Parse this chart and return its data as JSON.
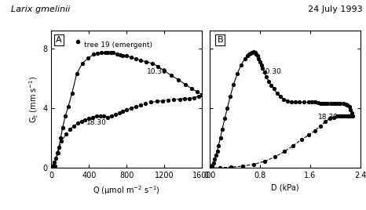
{
  "title_left": "Larix gmelinii",
  "title_right": "24 July 1993",
  "legend_label": "tree 19 (emergent)",
  "ylabel": "G$_t$ (mm s$^{-1}$)",
  "xlabel_a": "Q (μmol m$^{-2}$ s$^{-1}$)",
  "xlabel_b": "D (kPa)",
  "panel_a_label": "A",
  "panel_b_label": "B",
  "annotation_a_1030": "10.30",
  "annotation_a_1830": "18.30",
  "annotation_b_1030": "10.30",
  "annotation_b_1830": "18.30",
  "ylim": [
    0,
    9.2
  ],
  "xlim_a": [
    0,
    1600
  ],
  "xlim_b": [
    0.0,
    2.4
  ],
  "xticks_a": [
    0,
    400,
    800,
    1200,
    1600
  ],
  "xticks_b": [
    0.0,
    0.8,
    1.6,
    2.4
  ],
  "yticks": [
    0,
    4,
    8
  ],
  "panel_a_morning": {
    "Q": [
      0,
      5,
      15,
      25,
      35,
      50,
      65,
      80,
      100,
      120,
      150,
      180,
      220,
      270,
      330,
      390,
      450,
      490,
      530,
      570,
      600,
      630,
      660,
      700,
      730,
      760,
      800,
      850,
      900
    ],
    "Gt": [
      0,
      0.05,
      0.1,
      0.2,
      0.4,
      0.65,
      1.0,
      1.4,
      2.0,
      2.7,
      3.5,
      4.1,
      5.0,
      6.3,
      7.0,
      7.35,
      7.6,
      7.65,
      7.7,
      7.7,
      7.75,
      7.75,
      7.7,
      7.6,
      7.55,
      7.5,
      7.5,
      7.4,
      7.3
    ]
  },
  "panel_a_morning2": {
    "Q": [
      900,
      950,
      1010,
      1070,
      1130,
      1200,
      1270,
      1350,
      1420,
      1490,
      1550,
      1600
    ],
    "Gt": [
      7.3,
      7.2,
      7.1,
      7.0,
      6.8,
      6.5,
      6.2,
      5.9,
      5.6,
      5.3,
      5.1,
      4.9
    ]
  },
  "panel_a_afternoon": {
    "Q": [
      1600,
      1560,
      1510,
      1460,
      1410,
      1360,
      1300,
      1240,
      1180,
      1120,
      1060,
      1000,
      950,
      900,
      850,
      800,
      760,
      720,
      680,
      640,
      600,
      560,
      520,
      480,
      440,
      400,
      360,
      320,
      280,
      240,
      200,
      160,
      110,
      70,
      40
    ],
    "Gt": [
      4.9,
      4.8,
      4.7,
      4.65,
      4.65,
      4.6,
      4.6,
      4.55,
      4.5,
      4.45,
      4.4,
      4.3,
      4.2,
      4.1,
      4.0,
      3.9,
      3.8,
      3.7,
      3.6,
      3.5,
      3.4,
      3.5,
      3.5,
      3.5,
      3.4,
      3.3,
      3.2,
      3.1,
      3.0,
      2.8,
      2.6,
      2.3,
      1.8,
      1.0,
      0.1
    ]
  },
  "panel_b_morning": {
    "D": [
      0.0,
      0.01,
      0.02,
      0.04,
      0.06,
      0.08,
      0.1,
      0.12,
      0.14,
      0.17,
      0.2,
      0.24,
      0.28,
      0.33,
      0.38,
      0.44,
      0.5,
      0.56,
      0.6,
      0.63,
      0.65,
      0.67,
      0.68,
      0.7,
      0.72,
      0.74,
      0.76,
      0.78,
      0.8,
      0.82,
      0.84,
      0.87,
      0.9,
      0.94,
      0.98,
      1.02,
      1.07,
      1.12,
      1.18,
      1.24,
      1.3,
      1.36,
      1.43,
      1.5,
      1.57,
      1.63,
      1.68
    ],
    "Gt": [
      0.0,
      0.05,
      0.1,
      0.2,
      0.35,
      0.6,
      0.85,
      1.1,
      1.5,
      2.0,
      2.6,
      3.3,
      4.0,
      4.8,
      5.6,
      6.3,
      6.9,
      7.3,
      7.5,
      7.6,
      7.65,
      7.7,
      7.75,
      7.8,
      7.7,
      7.6,
      7.5,
      7.3,
      7.1,
      6.9,
      6.7,
      6.4,
      6.1,
      5.8,
      5.5,
      5.3,
      5.0,
      4.8,
      4.6,
      4.5,
      4.4,
      4.4,
      4.4,
      4.4,
      4.4,
      4.4,
      4.4
    ]
  },
  "panel_b_afternoon": {
    "D": [
      1.68,
      1.72,
      1.76,
      1.8,
      1.84,
      1.88,
      1.92,
      1.96,
      2.0,
      2.04,
      2.08,
      2.12,
      2.16,
      2.19,
      2.22,
      2.24,
      2.26,
      2.28,
      2.26,
      2.24,
      2.22,
      2.2,
      2.17,
      2.14,
      2.1,
      2.06,
      2.02,
      1.97,
      1.91,
      1.84,
      1.76,
      1.67,
      1.57,
      1.46,
      1.33,
      1.19,
      1.04,
      0.88,
      0.7,
      0.52,
      0.34,
      0.16,
      0.04
    ],
    "Gt": [
      4.4,
      4.35,
      4.3,
      4.3,
      4.3,
      4.3,
      4.3,
      4.3,
      4.3,
      4.3,
      4.3,
      4.3,
      4.25,
      4.2,
      4.1,
      3.9,
      3.7,
      3.5,
      3.5,
      3.5,
      3.5,
      3.5,
      3.5,
      3.5,
      3.5,
      3.5,
      3.5,
      3.4,
      3.3,
      3.1,
      2.8,
      2.5,
      2.2,
      1.9,
      1.5,
      1.1,
      0.75,
      0.45,
      0.25,
      0.12,
      0.06,
      0.02,
      0.0
    ]
  }
}
